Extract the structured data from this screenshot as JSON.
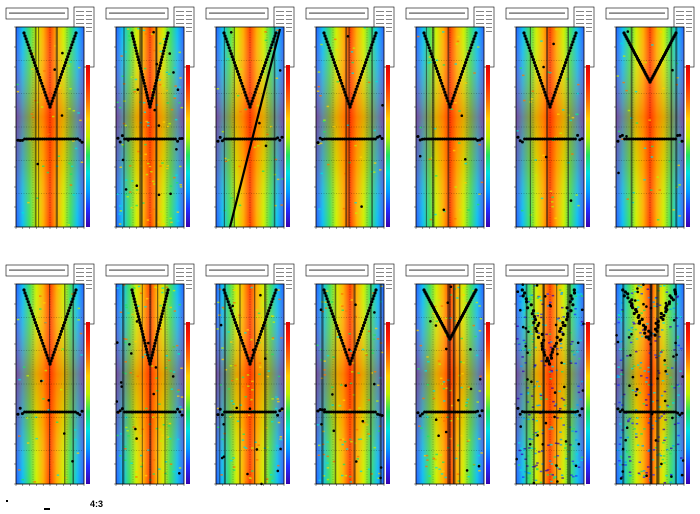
{
  "canvas_label": "4:3",
  "colors": {
    "palette": [
      "#3a00b0",
      "#2030ff",
      "#00a0ff",
      "#00e0e0",
      "#20e060",
      "#c0f000",
      "#ffd000",
      "#ff7000",
      "#ff2000",
      "#e00000"
    ],
    "marker": "#000000",
    "frame": "#000000"
  },
  "chart_data": [
    {
      "type": "heatmap",
      "grid": true,
      "legend": "top-right",
      "curve": "deep-v",
      "noise": "low"
    },
    {
      "type": "heatmap",
      "grid": true,
      "legend": "top-right",
      "curve": "narrow-v",
      "noise": "medium"
    },
    {
      "type": "heatmap",
      "grid": true,
      "legend": "top-right",
      "curve": "v-slanted-line",
      "noise": "low"
    },
    {
      "type": "heatmap",
      "grid": true,
      "legend": "top-right",
      "curve": "deep-v",
      "noise": "low"
    },
    {
      "type": "heatmap",
      "grid": true,
      "legend": "top-right",
      "curve": "deep-v",
      "noise": "low"
    },
    {
      "type": "heatmap",
      "grid": true,
      "legend": "top-right",
      "curve": "deep-v",
      "noise": "low"
    },
    {
      "type": "heatmap",
      "grid": true,
      "legend": "top-right",
      "curve": "shallow-v",
      "noise": "low"
    },
    {
      "type": "heatmap",
      "grid": true,
      "legend": "top-right",
      "curve": "deep-v",
      "noise": "low"
    },
    {
      "type": "heatmap",
      "grid": true,
      "legend": "top-right",
      "curve": "narrow-v",
      "noise": "medium"
    },
    {
      "type": "heatmap",
      "grid": true,
      "legend": "top-right",
      "curve": "deep-v",
      "noise": "medium"
    },
    {
      "type": "heatmap",
      "grid": true,
      "legend": "top-right",
      "curve": "deep-v",
      "noise": "medium"
    },
    {
      "type": "heatmap",
      "grid": true,
      "legend": "top-right",
      "curve": "shallow-u",
      "noise": "medium"
    },
    {
      "type": "heatmap",
      "grid": true,
      "legend": "top-right",
      "curve": "scattered",
      "noise": "high"
    },
    {
      "type": "heatmap",
      "grid": true,
      "legend": "top-right",
      "curve": "shallow-v",
      "noise": "high"
    }
  ]
}
